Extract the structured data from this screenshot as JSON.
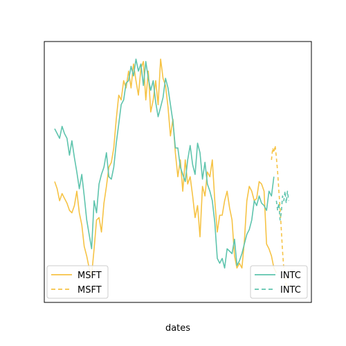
{
  "chart_data": {
    "type": "line",
    "title": "",
    "xlabel": "dates",
    "ylabel": "",
    "x_ticks_visible": false,
    "y_ticks_visible": false,
    "grid": false,
    "ylim": [
      0,
      100
    ],
    "x": [
      0,
      1,
      2,
      3,
      4,
      5,
      6,
      7,
      8,
      9,
      10,
      11,
      12,
      13,
      14,
      15,
      16,
      17,
      18,
      19,
      20,
      21,
      22,
      23,
      24,
      25,
      26,
      27,
      28,
      29,
      30,
      31,
      32,
      33,
      34,
      35,
      36,
      37,
      38,
      39,
      40,
      41,
      42,
      43,
      44,
      45,
      46,
      47,
      48,
      49,
      50,
      51,
      52,
      53,
      54,
      55,
      56,
      57,
      58,
      59,
      60,
      61,
      62,
      63,
      64,
      65,
      66,
      67,
      67.5,
      68,
      69,
      70,
      71,
      72,
      73,
      74,
      75,
      76,
      77,
      78,
      79,
      80,
      81,
      82,
      83,
      84,
      85,
      86,
      87,
      88,
      89,
      90,
      91,
      92,
      93,
      94,
      95,
      96,
      97,
      98,
      99,
      100,
      101,
      102,
      103,
      104,
      105,
      106,
      107,
      108,
      109,
      110,
      111,
      112,
      113,
      114,
      115,
      116,
      117,
      118,
      119,
      120,
      121,
      122,
      123,
      124,
      125,
      126,
      127,
      128,
      129,
      130,
      131,
      132,
      133,
      134,
      135,
      136,
      137,
      138,
      139,
      140,
      141,
      142,
      143,
      144,
      145,
      146,
      147,
      148,
      149,
      150,
      151,
      152,
      153,
      154,
      155,
      156,
      157,
      158,
      159,
      160,
      161,
      162,
      163,
      164,
      165,
      166,
      167,
      168,
      169,
      170,
      171,
      172,
      173,
      174,
      175,
      176,
      177,
      178,
      179,
      180,
      181,
      182,
      183,
      184,
      185,
      186,
      187,
      188,
      189,
      190,
      191,
      192,
      193,
      194,
      195,
      196,
      197,
      198,
      199,
      200
    ],
    "series": [
      {
        "name": "MSFT",
        "color": "#f6c345",
        "style": "solid",
        "x": [
          0,
          2,
          4,
          6,
          8,
          10,
          12,
          14,
          16,
          18,
          20,
          22,
          24,
          26,
          28,
          30,
          32,
          34,
          36,
          38,
          40,
          42,
          44,
          46,
          48,
          50,
          52,
          54,
          56,
          58,
          60,
          62,
          64,
          66,
          68,
          70,
          72,
          74,
          76,
          78,
          80,
          82,
          84,
          86,
          88,
          90,
          92,
          94,
          96,
          98,
          100,
          102,
          104,
          106,
          108,
          110,
          112,
          114,
          116,
          118,
          120,
          122,
          124,
          126,
          128,
          130,
          132,
          134,
          136,
          138,
          140,
          142,
          144,
          146,
          148,
          150,
          152,
          154,
          156,
          158,
          160,
          162,
          164,
          166,
          168,
          170,
          172,
          174,
          176,
          178,
          180
        ],
        "values": [
          46,
          43,
          38,
          41,
          39,
          37,
          34,
          33,
          36,
          42,
          33,
          28,
          19,
          15,
          10,
          7,
          18,
          30,
          31,
          25,
          37,
          44,
          52,
          54,
          60,
          72,
          82,
          80,
          88,
          85,
          92,
          85,
          95,
          88,
          82,
          93,
          96,
          80,
          92,
          75,
          80,
          88,
          78,
          97,
          89,
          86,
          77,
          65,
          72,
          58,
          48,
          55,
          42,
          55,
          45,
          48,
          40,
          31,
          36,
          23,
          44,
          40,
          50,
          48,
          55,
          38,
          25,
          32,
          32,
          38,
          42,
          35,
          30,
          15,
          10,
          12,
          10,
          21,
          38,
          44,
          42,
          38,
          39,
          46,
          45,
          42,
          20,
          18,
          15,
          10,
          8
        ]
      },
      {
        "name": "MSFT",
        "color": "#f6c345",
        "style": "dashed",
        "x": [
          176,
          177,
          178,
          179,
          180,
          181,
          182,
          183,
          184,
          185,
          186,
          187,
          188,
          189,
          190
        ],
        "values": [
          55,
          60,
          58,
          61,
          56,
          50,
          42,
          35,
          26,
          17,
          10,
          6,
          3,
          2,
          1
        ]
      },
      {
        "name": "INTC",
        "color": "#5ec4ad",
        "style": "solid",
        "x": [
          0,
          2,
          4,
          6,
          8,
          10,
          12,
          14,
          16,
          18,
          20,
          22,
          24,
          26,
          28,
          30,
          32,
          34,
          36,
          38,
          40,
          42,
          44,
          46,
          48,
          50,
          52,
          54,
          56,
          58,
          60,
          62,
          64,
          66,
          68,
          70,
          72,
          74,
          76,
          78,
          80,
          82,
          84,
          86,
          88,
          90,
          92,
          94,
          96,
          98,
          100,
          102,
          104,
          106,
          108,
          110,
          112,
          114,
          116,
          118,
          120,
          122,
          124,
          126,
          128,
          130,
          132,
          134,
          136,
          138,
          140,
          142,
          144,
          146,
          148,
          150,
          152,
          154,
          156,
          158,
          160,
          162,
          164,
          166,
          168,
          170,
          172,
          174,
          176,
          178
        ],
        "values": [
          68,
          66,
          64,
          69,
          66,
          64,
          57,
          63,
          56,
          50,
          43,
          49,
          40,
          30,
          24,
          18,
          38,
          33,
          45,
          49,
          52,
          58,
          48,
          47,
          52,
          62,
          70,
          78,
          80,
          87,
          88,
          94,
          90,
          97,
          92,
          95,
          86,
          96,
          89,
          84,
          88,
          79,
          73,
          77,
          81,
          89,
          85,
          78,
          71,
          60,
          60,
          52,
          49,
          46,
          55,
          61,
          53,
          49,
          62,
          58,
          47,
          54,
          45,
          42,
          38,
          29,
          14,
          12,
          14,
          10,
          18,
          17,
          16,
          22,
          11,
          13,
          16,
          20,
          24,
          26,
          30,
          38,
          36,
          40,
          37,
          36,
          34,
          42,
          40,
          48
        ]
      },
      {
        "name": "INTC",
        "color": "#5ec4ad",
        "style": "dashed",
        "x": [
          180,
          181,
          182,
          183,
          184,
          185,
          186,
          187,
          188,
          189,
          190
        ],
        "values": [
          38,
          34,
          37,
          30,
          33,
          40,
          38,
          42,
          37,
          42,
          38
        ]
      }
    ],
    "legends": [
      {
        "position": "lower-left",
        "entries": [
          {
            "label": "MSFT",
            "color": "#f6c345",
            "style": "solid"
          },
          {
            "label": "MSFT",
            "color": "#f6c345",
            "style": "dashed"
          }
        ]
      },
      {
        "position": "lower-right",
        "entries": [
          {
            "label": "INTC",
            "color": "#5ec4ad",
            "style": "solid"
          },
          {
            "label": "INTC",
            "color": "#5ec4ad",
            "style": "dashed"
          }
        ]
      }
    ]
  }
}
